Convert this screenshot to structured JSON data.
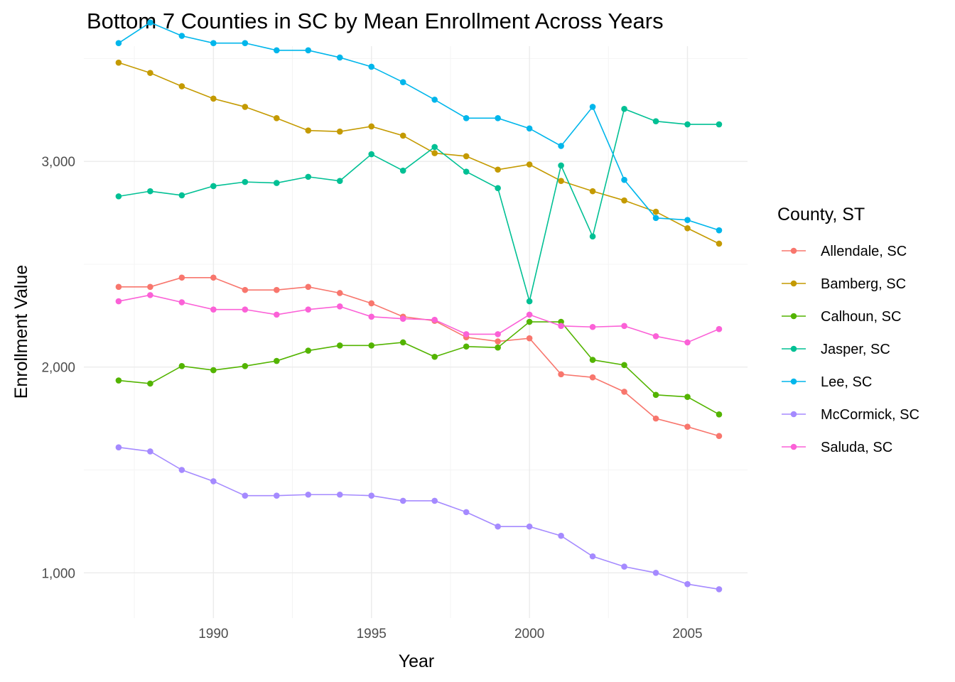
{
  "chart_data": {
    "type": "line",
    "title": "Bottom 7 Counties in SC by Mean Enrollment Across Years",
    "xlabel": "Year",
    "ylabel": "Enrollment Value",
    "x": [
      1987,
      1988,
      1989,
      1990,
      1991,
      1992,
      1993,
      1994,
      1995,
      1996,
      1997,
      1998,
      1999,
      2000,
      2001,
      2002,
      2003,
      2004,
      2005,
      2006
    ],
    "x_ticks": [
      1990,
      1995,
      2000,
      2005
    ],
    "x_tick_labels": [
      "1990",
      "1995",
      "2000",
      "2005"
    ],
    "y_ticks": [
      1000,
      2000,
      3000
    ],
    "y_tick_labels": [
      "1,000",
      "2,000",
      "3,000"
    ],
    "xlim": [
      1985.9,
      2006.9
    ],
    "ylim": [
      780,
      3560
    ],
    "grid": true,
    "legend": {
      "title": "County, ST",
      "position": "right"
    },
    "series": [
      {
        "name": "Allendale, SC",
        "color": "#F8766D",
        "values": [
          2390,
          2390,
          2435,
          2435,
          2375,
          2375,
          2390,
          2360,
          2310,
          2245,
          2225,
          2145,
          2125,
          2140,
          1965,
          1950,
          1880,
          1750,
          1710,
          1665
        ]
      },
      {
        "name": "Bamberg, SC",
        "color": "#C49A00",
        "values": [
          3480,
          3430,
          3365,
          3305,
          3265,
          3210,
          3150,
          3145,
          3170,
          3125,
          3040,
          3025,
          2960,
          2985,
          2905,
          2855,
          2810,
          2755,
          2675,
          2600
        ]
      },
      {
        "name": "Calhoun, SC",
        "color": "#53B400",
        "values": [
          1935,
          1920,
          2005,
          1985,
          2005,
          2030,
          2080,
          2105,
          2105,
          2120,
          2050,
          2100,
          2095,
          2220,
          2220,
          2035,
          2010,
          1865,
          1855,
          1770
        ]
      },
      {
        "name": "Jasper, SC",
        "color": "#00C094",
        "values": [
          2830,
          2855,
          2835,
          2880,
          2900,
          2895,
          2925,
          2905,
          3035,
          2955,
          3070,
          2950,
          2870,
          2320,
          2980,
          2635,
          3255,
          3195,
          3180,
          3180
        ]
      },
      {
        "name": "Lee, SC",
        "color": "#00B6EB",
        "values": [
          3575,
          3675,
          3610,
          3575,
          3575,
          3540,
          3540,
          3505,
          3460,
          3385,
          3300,
          3210,
          3210,
          3160,
          3075,
          3265,
          2910,
          2725,
          2715,
          2665
        ]
      },
      {
        "name": "McCormick, SC",
        "color": "#A58AFF",
        "values": [
          1610,
          1590,
          1500,
          1445,
          1375,
          1375,
          1380,
          1380,
          1375,
          1350,
          1350,
          1295,
          1225,
          1225,
          1180,
          1080,
          1030,
          1000,
          945,
          920
        ]
      },
      {
        "name": "Saluda, SC",
        "color": "#FB61D7",
        "values": [
          2320,
          2350,
          2315,
          2280,
          2280,
          2255,
          2280,
          2295,
          2245,
          2235,
          2230,
          2160,
          2160,
          2255,
          2200,
          2195,
          2200,
          2150,
          2120,
          2185
        ]
      }
    ]
  }
}
